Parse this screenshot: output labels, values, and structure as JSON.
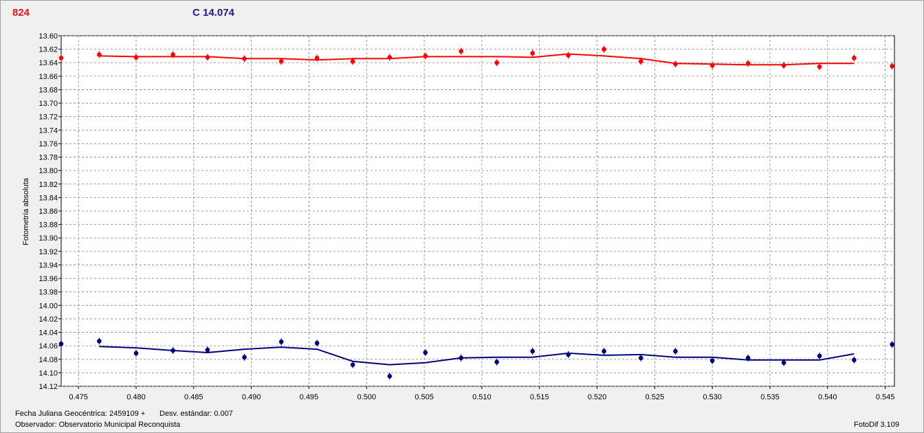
{
  "header": {
    "left_label": "824",
    "right_label": "C 14.074"
  },
  "footer": {
    "jd_label": "Fecha Juliana Geocéntrica: 2459109 +",
    "std_label": "Desv. estándar: 0.007",
    "observer_label": "Observador: Observatorio Municipal Reconquista",
    "software_label": "FotoDif 3.109"
  },
  "colors": {
    "series_top": "#ff0000",
    "series_bottom": "#00007f",
    "grid": "#808080"
  },
  "chart_data": {
    "type": "scatter",
    "title": "",
    "xlabel": "",
    "ylabel": "Fotometría absoluta",
    "xlim": [
      0.4735,
      0.5458
    ],
    "ylim": [
      13.6,
      14.12
    ],
    "y_inverted": true,
    "grid": true,
    "x_ticks": [
      "0.475",
      "0.480",
      "0.485",
      "0.490",
      "0.495",
      "0.500",
      "0.505",
      "0.510",
      "0.515",
      "0.520",
      "0.525",
      "0.530",
      "0.535",
      "0.540",
      "0.545"
    ],
    "y_ticks": [
      "13.60",
      "13.62",
      "13.64",
      "13.66",
      "13.68",
      "13.70",
      "13.72",
      "13.74",
      "13.76",
      "13.78",
      "13.80",
      "13.82",
      "13.84",
      "13.86",
      "13.88",
      "13.90",
      "13.92",
      "13.94",
      "13.96",
      "13.98",
      "14.00",
      "14.02",
      "14.04",
      "14.06",
      "14.08",
      "14.10",
      "14.12"
    ],
    "series": [
      {
        "points": [
          [
            0.4735,
            13.633
          ],
          [
            0.4768,
            13.628
          ],
          [
            0.48,
            13.632
          ],
          [
            0.4832,
            13.628
          ],
          [
            0.4862,
            13.632
          ],
          [
            0.4894,
            13.634
          ],
          [
            0.4926,
            13.638
          ],
          [
            0.4957,
            13.633
          ],
          [
            0.4988,
            13.638
          ],
          [
            0.502,
            13.632
          ],
          [
            0.5051,
            13.63
          ],
          [
            0.5082,
            13.623
          ],
          [
            0.5113,
            13.64
          ],
          [
            0.5144,
            13.626
          ],
          [
            0.5175,
            13.629
          ],
          [
            0.5206,
            13.62
          ],
          [
            0.5238,
            13.638
          ],
          [
            0.5268,
            13.642
          ],
          [
            0.53,
            13.644
          ],
          [
            0.5331,
            13.641
          ],
          [
            0.5362,
            13.644
          ],
          [
            0.5393,
            13.646
          ],
          [
            0.5423,
            13.633
          ],
          [
            0.5456,
            13.645
          ]
        ],
        "fit": [
          [
            0.4768,
            13.63
          ],
          [
            0.48,
            13.631
          ],
          [
            0.4832,
            13.631
          ],
          [
            0.4862,
            13.631
          ],
          [
            0.4894,
            13.634
          ],
          [
            0.4926,
            13.634
          ],
          [
            0.4957,
            13.636
          ],
          [
            0.4988,
            13.634
          ],
          [
            0.502,
            13.634
          ],
          [
            0.5051,
            13.631
          ],
          [
            0.5082,
            13.631
          ],
          [
            0.5113,
            13.631
          ],
          [
            0.5144,
            13.632
          ],
          [
            0.5175,
            13.627
          ],
          [
            0.5206,
            13.63
          ],
          [
            0.5238,
            13.634
          ],
          [
            0.5268,
            13.641
          ],
          [
            0.53,
            13.642
          ],
          [
            0.5331,
            13.643
          ],
          [
            0.5362,
            13.643
          ],
          [
            0.5393,
            13.641
          ],
          [
            0.5423,
            13.641
          ]
        ]
      },
      {
        "points": [
          [
            0.4735,
            14.057
          ],
          [
            0.4768,
            14.053
          ],
          [
            0.48,
            14.071
          ],
          [
            0.4832,
            14.067
          ],
          [
            0.4862,
            14.066
          ],
          [
            0.4894,
            14.077
          ],
          [
            0.4926,
            14.054
          ],
          [
            0.4957,
            14.056
          ],
          [
            0.4988,
            14.088
          ],
          [
            0.502,
            14.105
          ],
          [
            0.5051,
            14.07
          ],
          [
            0.5082,
            14.078
          ],
          [
            0.5113,
            14.084
          ],
          [
            0.5144,
            14.068
          ],
          [
            0.5175,
            14.073
          ],
          [
            0.5206,
            14.068
          ],
          [
            0.5238,
            14.078
          ],
          [
            0.5268,
            14.068
          ],
          [
            0.53,
            14.082
          ],
          [
            0.5331,
            14.078
          ],
          [
            0.5362,
            14.085
          ],
          [
            0.5393,
            14.075
          ],
          [
            0.5423,
            14.081
          ],
          [
            0.5456,
            14.058
          ]
        ],
        "fit": [
          [
            0.4768,
            14.061
          ],
          [
            0.48,
            14.063
          ],
          [
            0.4832,
            14.067
          ],
          [
            0.4862,
            14.07
          ],
          [
            0.4894,
            14.065
          ],
          [
            0.4926,
            14.062
          ],
          [
            0.4957,
            14.065
          ],
          [
            0.4988,
            14.083
          ],
          [
            0.502,
            14.088
          ],
          [
            0.5051,
            14.085
          ],
          [
            0.5082,
            14.078
          ],
          [
            0.5113,
            14.077
          ],
          [
            0.5144,
            14.077
          ],
          [
            0.5175,
            14.071
          ],
          [
            0.5206,
            14.074
          ],
          [
            0.5238,
            14.073
          ],
          [
            0.5268,
            14.077
          ],
          [
            0.53,
            14.077
          ],
          [
            0.5331,
            14.081
          ],
          [
            0.5362,
            14.081
          ],
          [
            0.5393,
            14.081
          ],
          [
            0.5423,
            14.072
          ]
        ]
      }
    ]
  }
}
